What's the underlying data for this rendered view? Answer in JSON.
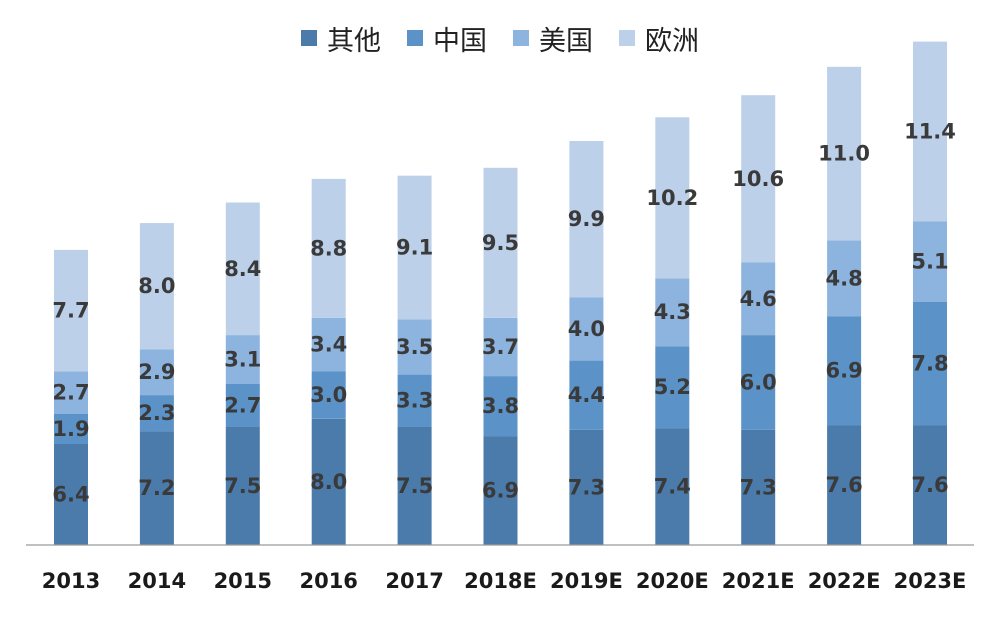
{
  "chart_data": {
    "type": "bar",
    "stacked": true,
    "categories": [
      "2013",
      "2014",
      "2015",
      "2016",
      "2017",
      "2018E",
      "2019E",
      "2020E",
      "2021E",
      "2022E",
      "2023E"
    ],
    "series": [
      {
        "name": "其他",
        "color": "#4a7bab",
        "values": [
          6.4,
          7.2,
          7.5,
          8.0,
          7.5,
          6.9,
          7.3,
          7.4,
          7.3,
          7.6,
          7.6
        ]
      },
      {
        "name": "中国",
        "color": "#5b92c8",
        "values": [
          1.9,
          2.3,
          2.7,
          3.0,
          3.3,
          3.8,
          4.4,
          5.2,
          6.0,
          6.9,
          7.8
        ]
      },
      {
        "name": "美国",
        "color": "#8db3df",
        "values": [
          2.7,
          2.9,
          3.1,
          3.4,
          3.5,
          3.7,
          4.0,
          4.3,
          4.6,
          4.8,
          5.1
        ]
      },
      {
        "name": "欧洲",
        "color": "#bcd0ea",
        "values": [
          7.7,
          8.0,
          8.4,
          8.8,
          9.1,
          9.5,
          9.9,
          10.2,
          10.6,
          11.0,
          11.4
        ]
      }
    ],
    "ylim": [
      0,
      32
    ],
    "grid": false,
    "legend": "top-center",
    "data_labels": true
  }
}
